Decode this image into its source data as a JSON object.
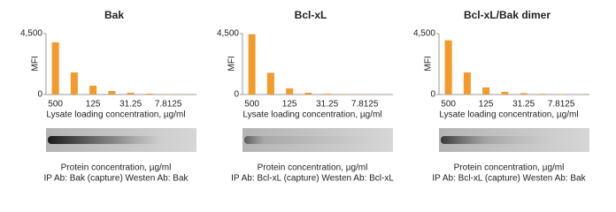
{
  "chart_data": [
    {
      "type": "bar",
      "title": "Bak",
      "ylabel": "MFI",
      "xlabel": "Lysate loading concentration, µg/ml",
      "categories": [
        "500",
        null,
        "125",
        null,
        "31.25",
        null,
        "7.8125",
        null
      ],
      "values": [
        3850,
        1630,
        650,
        260,
        130,
        65,
        30,
        15
      ],
      "color": "#f39a2b",
      "ylim": [
        0,
        4500
      ],
      "yticks": [
        0,
        {
          "value": 4500,
          "label": "4,500"
        }
      ],
      "grid": false,
      "notes": [
        "Protein concentration, µg/ml",
        "IP Ab: Bak (capture) Westen Ab: Bak"
      ]
    },
    {
      "type": "bar",
      "title": "Bcl-xL",
      "ylabel": "MFI",
      "xlabel": "Lysate loading concentration, µg/ml",
      "categories": [
        "500",
        null,
        "125",
        null,
        "31.25",
        null,
        "7.8125",
        null
      ],
      "values": [
        4450,
        1600,
        450,
        130,
        60,
        30,
        15,
        10
      ],
      "color": "#f39a2b",
      "ylim": [
        0,
        4500
      ],
      "yticks": [
        0,
        {
          "value": 4500,
          "label": "4,500"
        }
      ],
      "grid": false,
      "notes": [
        "Protein concentration, µg/ml",
        "IP Ab: Bcl-xL (capture) Westen Ab: Bcl-xL"
      ]
    },
    {
      "type": "bar",
      "title": "Bcl-xL/Bak dimer",
      "ylabel": "MFI",
      "xlabel": "Lysate loading concentration, µg/ml",
      "categories": [
        "500",
        null,
        "125",
        null,
        "31.25",
        null,
        "7.8125",
        null
      ],
      "values": [
        4000,
        1630,
        520,
        200,
        100,
        50,
        30,
        20
      ],
      "color": "#f39a2b",
      "ylim": [
        0,
        4500
      ],
      "yticks": [
        0,
        {
          "value": 4500,
          "label": "4,500"
        }
      ],
      "grid": false,
      "notes": [
        "Protein concentration, µg/ml",
        "IP Ab: Bcl-xL (capture) Westen Ab: Bak"
      ]
    }
  ]
}
